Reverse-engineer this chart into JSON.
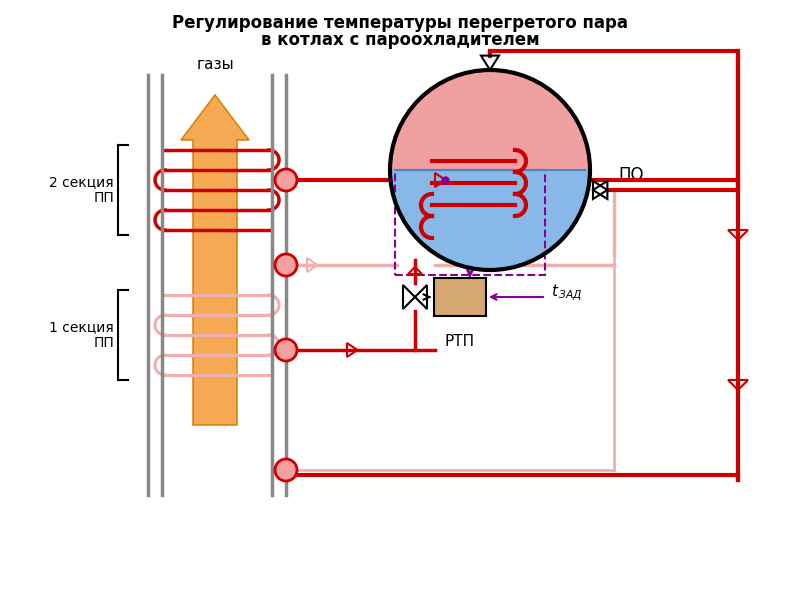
{
  "title_line1": "Регулирование температуры перегретого пара",
  "title_line2": "в котлах с пароохладителем",
  "title_fontsize": 12,
  "bg_color": "#ffffff",
  "red": "#cc0000",
  "lred": "#e87070",
  "pink": "#f0b0b0",
  "lpink": "#f8d0d0",
  "orange_fill": "#f5a040",
  "orange_edge": "#d08000",
  "purple": "#880099",
  "tan": "#d4a870",
  "blue_water": "#88b8e8",
  "steam_pink": "#f0c0c0",
  "wall_gray": "#888888",
  "label_gazy": "газы",
  "label_PO": "ПО",
  "label_RTP": "РТП",
  "label_2sec": "2 секция\nПП",
  "label_1sec": "1 секция\nПП"
}
